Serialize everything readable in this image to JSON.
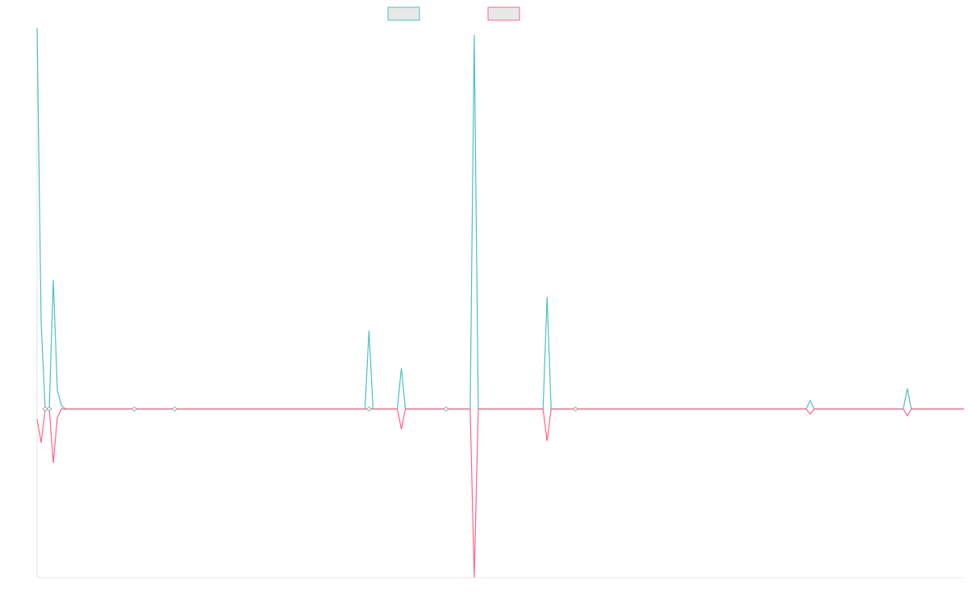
{
  "chart_data": {
    "type": "line",
    "title": "",
    "xlabel": "",
    "ylabel": "",
    "legend_position": "top-center",
    "grid": false,
    "ylim": [
      -1,
      1.12
    ],
    "xlim": [
      0,
      229
    ],
    "series": [
      {
        "name": "",
        "color": "#4bc0c0",
        "fill": "#e8e8e8",
        "points": [
          [
            0,
            1.12
          ],
          [
            1,
            0.25
          ],
          [
            2,
            0.0
          ],
          [
            3,
            0.0
          ],
          [
            4,
            0.38
          ],
          [
            5,
            0.055
          ],
          [
            6,
            0.01
          ],
          [
            7,
            0.0
          ],
          [
            20,
            0.0
          ],
          [
            24,
            0.0
          ],
          [
            34,
            0.0
          ],
          [
            81,
            0.0
          ],
          [
            82,
            0.23
          ],
          [
            83,
            0.0
          ],
          [
            89,
            0.0
          ],
          [
            90,
            0.12
          ],
          [
            91,
            0.0
          ],
          [
            97,
            0.0
          ],
          [
            107,
            0.0
          ],
          [
            108,
            1.1
          ],
          [
            109,
            0.0
          ],
          [
            125,
            0.0
          ],
          [
            126,
            0.33
          ],
          [
            127,
            0.0
          ],
          [
            190,
            0.0
          ],
          [
            191,
            0.025
          ],
          [
            192,
            0.0
          ],
          [
            214,
            0.0
          ],
          [
            215,
            0.06
          ],
          [
            216,
            0.0
          ],
          [
            229,
            0.0
          ]
        ]
      },
      {
        "name": "",
        "color": "#ff6384",
        "fill": "#e8e8e8",
        "points": [
          [
            0,
            -0.06
          ],
          [
            1,
            -0.2
          ],
          [
            2,
            0.0
          ],
          [
            3,
            0.0
          ],
          [
            4,
            -0.32
          ],
          [
            5,
            -0.05
          ],
          [
            6,
            0.0
          ],
          [
            7,
            0.0
          ],
          [
            89,
            0.0
          ],
          [
            90,
            -0.12
          ],
          [
            91,
            0.0
          ],
          [
            107,
            0.0
          ],
          [
            108,
            -1.0
          ],
          [
            109,
            0.0
          ],
          [
            125,
            0.0
          ],
          [
            126,
            -0.19
          ],
          [
            127,
            0.0
          ],
          [
            190,
            0.0
          ],
          [
            191,
            -0.03
          ],
          [
            192,
            0.0
          ],
          [
            214,
            0.0
          ],
          [
            215,
            -0.04
          ],
          [
            216,
            0.0
          ],
          [
            229,
            0.0
          ]
        ]
      }
    ],
    "markers": [
      {
        "x": 2,
        "y": 0.0
      },
      {
        "x": 3,
        "y": 0.0
      },
      {
        "x": 24,
        "y": 0.0
      },
      {
        "x": 34,
        "y": 0.0
      },
      {
        "x": 82,
        "y": 0.0
      },
      {
        "x": 101,
        "y": 0.0
      },
      {
        "x": 133,
        "y": 0.0
      }
    ]
  }
}
